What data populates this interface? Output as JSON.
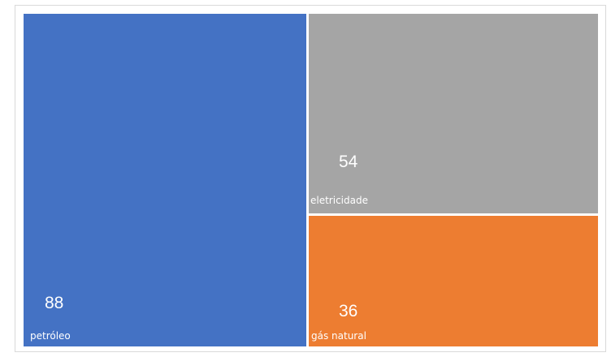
{
  "chart_data": {
    "type": "treemap",
    "items": [
      {
        "label": "petróleo",
        "value": 88,
        "color": "#4472c4"
      },
      {
        "label": "eletricidade",
        "value": 54,
        "color": "#a5a5a5"
      },
      {
        "label": "gás natural",
        "value": 36,
        "color": "#ed7d31"
      }
    ]
  }
}
